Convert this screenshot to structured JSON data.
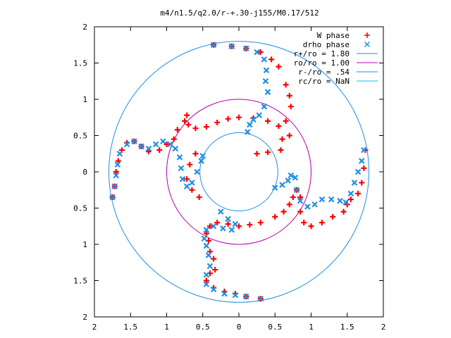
{
  "chart_data": {
    "type": "scatter",
    "title": "m4/n1.5/q2.0/r-+.30-j155/M0.17/512",
    "xlabel": "",
    "ylabel": "",
    "xlim": [
      -2,
      2
    ],
    "ylim": [
      -2,
      2
    ],
    "x_ticks": [
      -2,
      -1.5,
      -1,
      -0.5,
      0,
      0.5,
      1,
      1.5,
      2
    ],
    "y_ticks": [
      -2,
      -1.5,
      -1,
      -0.5,
      0,
      0.5,
      1,
      1.5,
      2
    ],
    "x_tick_labels": [
      "2",
      "1.5",
      "1",
      "0.5",
      "0",
      "0.5",
      "1",
      "1.5",
      "2"
    ],
    "y_tick_labels": [
      "2",
      "1.5",
      "1",
      "0.5",
      "0",
      "0.5",
      "1",
      "1.5",
      "2"
    ],
    "grid": false,
    "legend_position": "top-right",
    "series": [
      {
        "name": "W phase",
        "marker": "plus",
        "color": "#ff0000",
        "points": [
          [
            0.3,
            -1.75
          ],
          [
            0.1,
            -1.72
          ],
          [
            -0.05,
            -1.68
          ],
          [
            -0.2,
            -1.65
          ],
          [
            -0.35,
            -1.6
          ],
          [
            -0.45,
            -1.5
          ],
          [
            -0.4,
            -1.4
          ],
          [
            -0.33,
            -1.35
          ],
          [
            -0.35,
            -1.2
          ],
          [
            -0.4,
            -1.1
          ],
          [
            -0.42,
            -0.95
          ],
          [
            -0.45,
            -0.85
          ],
          [
            -0.4,
            -0.75
          ],
          [
            -0.3,
            -0.7
          ],
          [
            -0.15,
            -0.72
          ],
          [
            0.0,
            -0.75
          ],
          [
            0.15,
            -0.73
          ],
          [
            0.3,
            -0.7
          ],
          [
            0.5,
            -0.62
          ],
          [
            0.62,
            -0.55
          ],
          [
            0.7,
            -0.45
          ],
          [
            0.75,
            -0.35
          ],
          [
            0.8,
            -0.25
          ],
          [
            0.85,
            -0.35
          ],
          [
            0.85,
            -0.55
          ],
          [
            0.9,
            -0.7
          ],
          [
            1.0,
            -0.75
          ],
          [
            1.15,
            -0.7
          ],
          [
            1.3,
            -0.62
          ],
          [
            1.45,
            -0.55
          ],
          [
            1.5,
            -0.45
          ],
          [
            1.55,
            -0.38
          ],
          [
            1.65,
            -0.3
          ],
          [
            1.7,
            -0.15
          ],
          [
            1.73,
            0.05
          ],
          [
            1.75,
            0.3
          ],
          [
            -1.75,
            -0.35
          ],
          [
            -1.72,
            -0.2
          ],
          [
            -1.7,
            0.0
          ],
          [
            -1.67,
            0.15
          ],
          [
            -1.62,
            0.3
          ],
          [
            -1.55,
            0.4
          ],
          [
            -1.45,
            0.42
          ],
          [
            -1.35,
            0.35
          ],
          [
            -1.25,
            0.28
          ],
          [
            -1.1,
            0.3
          ],
          [
            -1.0,
            0.38
          ],
          [
            -0.9,
            0.45
          ],
          [
            -0.85,
            0.58
          ],
          [
            -0.75,
            0.7
          ],
          [
            -0.72,
            0.78
          ],
          [
            -0.7,
            0.65
          ],
          [
            -0.6,
            0.6
          ],
          [
            -0.45,
            0.62
          ],
          [
            -0.3,
            0.68
          ],
          [
            -0.15,
            0.73
          ],
          [
            0.0,
            0.75
          ],
          [
            0.2,
            0.74
          ],
          [
            0.4,
            0.7
          ],
          [
            0.55,
            0.63
          ],
          [
            0.6,
            0.45
          ],
          [
            0.58,
            0.3
          ],
          [
            0.4,
            0.27
          ],
          [
            0.25,
            0.25
          ],
          [
            0.7,
            0.5
          ],
          [
            0.65,
            0.7
          ],
          [
            0.72,
            0.9
          ],
          [
            0.7,
            1.05
          ],
          [
            0.65,
            1.2
          ],
          [
            0.55,
            1.45
          ],
          [
            0.45,
            1.55
          ],
          [
            0.3,
            1.65
          ],
          [
            0.1,
            1.7
          ],
          [
            -0.1,
            1.73
          ],
          [
            -0.35,
            1.75
          ],
          [
            -0.6,
            0.25
          ],
          [
            -0.68,
            0.1
          ],
          [
            -0.72,
            -0.1
          ],
          [
            -0.65,
            -0.25
          ],
          [
            -0.55,
            -0.35
          ]
        ]
      },
      {
        "name": "drho phase",
        "marker": "cross",
        "color": "#1e8fe6",
        "points": [
          [
            0.3,
            -1.75
          ],
          [
            0.1,
            -1.72
          ],
          [
            -0.05,
            -1.7
          ],
          [
            -0.2,
            -1.68
          ],
          [
            -0.35,
            -1.62
          ],
          [
            -0.45,
            -1.55
          ],
          [
            -0.45,
            -1.42
          ],
          [
            -0.4,
            -1.3
          ],
          [
            -0.42,
            -1.15
          ],
          [
            -0.45,
            -1.02
          ],
          [
            -0.48,
            -0.92
          ],
          [
            -0.45,
            -0.8
          ],
          [
            -0.35,
            -0.75
          ],
          [
            -0.22,
            -0.78
          ],
          [
            -0.1,
            -0.8
          ],
          [
            -0.05,
            -0.72
          ],
          [
            -0.15,
            -0.65
          ],
          [
            -0.25,
            -0.55
          ],
          [
            1.73,
            0.3
          ],
          [
            1.7,
            0.15
          ],
          [
            1.65,
            0.0
          ],
          [
            1.6,
            -0.15
          ],
          [
            1.55,
            -0.3
          ],
          [
            1.48,
            -0.42
          ],
          [
            1.4,
            -0.4
          ],
          [
            1.28,
            -0.38
          ],
          [
            1.15,
            -0.38
          ],
          [
            1.05,
            -0.45
          ],
          [
            0.95,
            -0.48
          ],
          [
            0.85,
            -0.4
          ],
          [
            0.8,
            -0.25
          ],
          [
            0.78,
            -0.08
          ],
          [
            0.72,
            -0.05
          ],
          [
            0.68,
            -0.12
          ],
          [
            0.6,
            -0.18
          ],
          [
            0.5,
            -0.22
          ],
          [
            -1.75,
            -0.35
          ],
          [
            -1.72,
            -0.2
          ],
          [
            -1.7,
            -0.05
          ],
          [
            -1.68,
            0.1
          ],
          [
            -1.65,
            0.25
          ],
          [
            -1.55,
            0.38
          ],
          [
            -1.45,
            0.42
          ],
          [
            -1.35,
            0.35
          ],
          [
            -1.25,
            0.32
          ],
          [
            -1.15,
            0.38
          ],
          [
            -1.05,
            0.42
          ],
          [
            -0.95,
            0.38
          ],
          [
            -0.88,
            0.32
          ],
          [
            -0.82,
            0.2
          ],
          [
            -0.8,
            0.05
          ],
          [
            -0.78,
            -0.1
          ],
          [
            -0.72,
            -0.2
          ],
          [
            -0.65,
            -0.15
          ],
          [
            -0.58,
            0.0
          ],
          [
            -0.52,
            0.15
          ],
          [
            -0.5,
            0.22
          ],
          [
            -0.35,
            1.75
          ],
          [
            -0.1,
            1.73
          ],
          [
            0.1,
            1.7
          ],
          [
            0.25,
            1.65
          ],
          [
            0.35,
            1.55
          ],
          [
            0.38,
            1.4
          ],
          [
            0.37,
            1.25
          ],
          [
            0.4,
            1.1
          ],
          [
            0.35,
            0.9
          ],
          [
            0.28,
            0.78
          ],
          [
            0.2,
            0.72
          ],
          [
            0.15,
            0.65
          ],
          [
            0.12,
            0.55
          ]
        ]
      },
      {
        "name": "r+/ro = 1.80",
        "marker": "circle",
        "color": "#1e8fe6",
        "radius": 1.8
      },
      {
        "name": "ro/ro = 1.00",
        "marker": "circle",
        "color": "#b000b0",
        "radius": 1.0
      },
      {
        "name": "r-/ro = .54",
        "marker": "circle",
        "color": "#1e8fe6",
        "radius": 0.54
      },
      {
        "name": "rc/ro = NaN",
        "marker": "circle",
        "color": "#00c8e6",
        "radius": null
      }
    ]
  }
}
